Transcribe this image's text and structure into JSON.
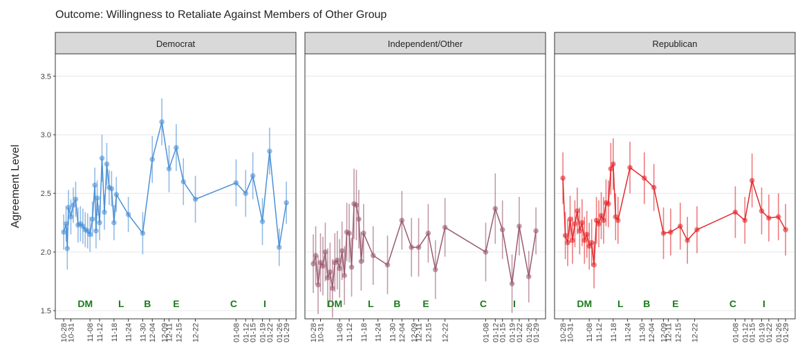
{
  "title": "Outcome: Willingness to Retaliate Against Members of Other Group",
  "y_label": "Agreement Level",
  "chart_data": [
    {
      "type": "line",
      "title": "Democrat",
      "x": [
        0,
        1,
        1.5,
        2,
        3,
        4,
        5,
        6,
        7,
        8,
        9,
        10,
        11,
        12,
        13,
        13.5,
        14,
        15,
        16,
        17,
        18,
        19,
        20,
        21,
        22,
        27,
        33,
        37,
        41,
        44,
        47,
        50,
        55,
        72,
        76,
        79,
        83,
        86,
        90,
        93
      ],
      "series": [
        {
          "color": "#4a8fd6",
          "values": [
            2.17,
            2.24,
            2.03,
            2.38,
            2.3,
            2.4,
            2.45,
            2.23,
            2.24,
            2.22,
            2.19,
            2.18,
            2.15,
            2.28,
            2.57,
            2.18,
            2.46,
            2.25,
            2.8,
            2.34,
            2.75,
            2.55,
            2.54,
            2.25,
            2.49,
            2.32,
            2.16,
            2.79,
            3.11,
            2.71,
            2.89,
            2.6,
            2.45,
            2.59,
            2.5,
            2.65,
            2.26,
            2.86,
            2.04,
            2.42
          ],
          "errors": [
            0.15,
            0.15,
            0.18,
            0.15,
            0.15,
            0.15,
            0.15,
            0.15,
            0.15,
            0.15,
            0.15,
            0.15,
            0.15,
            0.15,
            0.15,
            0.15,
            0.15,
            0.15,
            0.2,
            0.15,
            0.18,
            0.15,
            0.15,
            0.15,
            0.15,
            0.15,
            0.18,
            0.2,
            0.2,
            0.2,
            0.2,
            0.2,
            0.2,
            0.2,
            0.2,
            0.2,
            0.2,
            0.2,
            0.16,
            0.18
          ]
        }
      ],
      "annotations": [
        {
          "label": "DM",
          "x": 9,
          "y": 1.56
        },
        {
          "label": "L",
          "x": 24,
          "y": 1.56
        },
        {
          "label": "B",
          "x": 35,
          "y": 1.56
        },
        {
          "label": "E",
          "x": 47,
          "y": 1.56
        },
        {
          "label": "C",
          "x": 71,
          "y": 1.56
        },
        {
          "label": "I",
          "x": 84,
          "y": 1.56
        }
      ],
      "annotation_color": "#1a7a1a",
      "xlim": [
        -3.5,
        97
      ],
      "ylim": [
        1.43,
        3.69
      ],
      "xticks": [
        {
          "value": 0,
          "label": "10-28"
        },
        {
          "value": 3,
          "label": "10-31"
        },
        {
          "value": 11,
          "label": "11-08"
        },
        {
          "value": 15,
          "label": "11-12"
        },
        {
          "value": 21,
          "label": "11-18"
        },
        {
          "value": 27,
          "label": "11-24"
        },
        {
          "value": 33,
          "label": "11-30"
        },
        {
          "value": 37,
          "label": "12-04"
        },
        {
          "value": 42,
          "label": "12-09"
        },
        {
          "value": 44,
          "label": "12-11"
        },
        {
          "value": 48,
          "label": "12-15"
        },
        {
          "value": 55,
          "label": "12-22"
        },
        {
          "value": 72,
          "label": "01-08"
        },
        {
          "value": 76,
          "label": "01-12"
        },
        {
          "value": 79,
          "label": "01-15"
        },
        {
          "value": 83,
          "label": "01-19"
        },
        {
          "value": 86,
          "label": "01-22"
        },
        {
          "value": 90,
          "label": "01-26"
        },
        {
          "value": 93,
          "label": "01-29"
        }
      ],
      "yticks": [
        {
          "value": 1.5,
          "label": "1.5"
        },
        {
          "value": 2,
          "label": "2.0"
        },
        {
          "value": 2.5,
          "label": "2.5"
        },
        {
          "value": 3,
          "label": "3.0"
        },
        {
          "value": 3.5,
          "label": "3.5"
        }
      ],
      "grid": true
    },
    {
      "type": "line",
      "title": "Independent/Other",
      "x": [
        0,
        1,
        2,
        3,
        4,
        5,
        6,
        7,
        8,
        9,
        10,
        11,
        12,
        13,
        14,
        15,
        16,
        17,
        18,
        19,
        20,
        21,
        25,
        31,
        37,
        41,
        44,
        48,
        51,
        55,
        72,
        76,
        79,
        83,
        86,
        90,
        93
      ],
      "series": [
        {
          "color": "#99596f",
          "values": [
            1.9,
            1.97,
            1.72,
            1.91,
            1.88,
            2.0,
            1.78,
            1.83,
            1.69,
            1.91,
            1.93,
            1.86,
            2.01,
            1.8,
            2.17,
            2.16,
            1.87,
            2.41,
            2.4,
            2.28,
            1.92,
            2.16,
            1.97,
            1.89,
            2.27,
            2.04,
            2.04,
            2.16,
            1.85,
            2.21,
            2.0,
            2.37,
            2.19,
            1.73,
            2.22,
            1.79,
            2.18
          ],
          "errors": [
            0.25,
            0.25,
            0.25,
            0.25,
            0.25,
            0.25,
            0.25,
            0.25,
            0.25,
            0.25,
            0.25,
            0.25,
            0.25,
            0.25,
            0.25,
            0.25,
            0.25,
            0.3,
            0.3,
            0.25,
            0.25,
            0.25,
            0.25,
            0.25,
            0.25,
            0.25,
            0.25,
            0.25,
            0.25,
            0.25,
            0.25,
            0.3,
            0.25,
            0.25,
            0.25,
            0.22,
            0.2
          ]
        }
      ],
      "annotations": [
        {
          "label": "DM",
          "x": 9,
          "y": 1.56
        },
        {
          "label": "L",
          "x": 24,
          "y": 1.56
        },
        {
          "label": "B",
          "x": 35,
          "y": 1.56
        },
        {
          "label": "E",
          "x": 47,
          "y": 1.56
        },
        {
          "label": "C",
          "x": 71,
          "y": 1.56
        },
        {
          "label": "I",
          "x": 84,
          "y": 1.56
        }
      ],
      "annotation_color": "#1a7a1a",
      "xlim": [
        -3.5,
        97
      ],
      "ylim": [
        1.43,
        3.69
      ],
      "xticks": [
        {
          "value": 0,
          "label": "10-28"
        },
        {
          "value": 3,
          "label": "10-31"
        },
        {
          "value": 11,
          "label": "11-08"
        },
        {
          "value": 15,
          "label": "11-12"
        },
        {
          "value": 21,
          "label": "11-18"
        },
        {
          "value": 27,
          "label": "11-24"
        },
        {
          "value": 33,
          "label": "11-30"
        },
        {
          "value": 37,
          "label": "12-04"
        },
        {
          "value": 42,
          "label": "12-09"
        },
        {
          "value": 44,
          "label": "12-11"
        },
        {
          "value": 48,
          "label": "12-15"
        },
        {
          "value": 55,
          "label": "12-22"
        },
        {
          "value": 72,
          "label": "01-08"
        },
        {
          "value": 76,
          "label": "01-12"
        },
        {
          "value": 79,
          "label": "01-15"
        },
        {
          "value": 83,
          "label": "01-19"
        },
        {
          "value": 86,
          "label": "01-22"
        },
        {
          "value": 90,
          "label": "01-26"
        },
        {
          "value": 93,
          "label": "01-29"
        }
      ],
      "yticks": [
        {
          "value": 1.5,
          "label": "1.5"
        },
        {
          "value": 2,
          "label": "2.0"
        },
        {
          "value": 2.5,
          "label": "2.5"
        },
        {
          "value": 3,
          "label": "3.0"
        },
        {
          "value": 3.5,
          "label": "3.5"
        }
      ],
      "grid": true
    },
    {
      "type": "line",
      "title": "Republican",
      "x": [
        0,
        1,
        2,
        3,
        4,
        5,
        6,
        7,
        8,
        9,
        10,
        11,
        12,
        13,
        14,
        15,
        16,
        17,
        18,
        19,
        20,
        21,
        22,
        23,
        28,
        34,
        38,
        42,
        45,
        49,
        52,
        56,
        72,
        76,
        79,
        83,
        86,
        90,
        93
      ],
      "series": [
        {
          "color": "#e3262b",
          "values": [
            2.63,
            2.14,
            2.08,
            2.28,
            2.1,
            2.24,
            2.35,
            2.18,
            2.25,
            2.1,
            2.15,
            2.05,
            2.08,
            1.89,
            2.27,
            2.24,
            2.31,
            2.27,
            2.42,
            2.41,
            2.71,
            2.75,
            2.3,
            2.27,
            2.72,
            2.63,
            2.55,
            2.16,
            2.17,
            2.22,
            2.1,
            2.19,
            2.34,
            2.27,
            2.61,
            2.35,
            2.29,
            2.3,
            2.19
          ],
          "errors": [
            0.22,
            0.2,
            0.2,
            0.2,
            0.2,
            0.2,
            0.2,
            0.2,
            0.2,
            0.2,
            0.2,
            0.2,
            0.2,
            0.2,
            0.2,
            0.2,
            0.2,
            0.2,
            0.2,
            0.2,
            0.22,
            0.22,
            0.2,
            0.2,
            0.22,
            0.22,
            0.2,
            0.22,
            0.2,
            0.2,
            0.2,
            0.2,
            0.22,
            0.2,
            0.23,
            0.2,
            0.2,
            0.2,
            0.22
          ]
        }
      ],
      "annotations": [
        {
          "label": "DM",
          "x": 9,
          "y": 1.56
        },
        {
          "label": "L",
          "x": 24,
          "y": 1.56
        },
        {
          "label": "B",
          "x": 35,
          "y": 1.56
        },
        {
          "label": "E",
          "x": 47,
          "y": 1.56
        },
        {
          "label": "C",
          "x": 71,
          "y": 1.56
        },
        {
          "label": "I",
          "x": 84,
          "y": 1.56
        }
      ],
      "annotation_color": "#1a7a1a",
      "xlim": [
        -3.5,
        97
      ],
      "ylim": [
        1.43,
        3.69
      ],
      "xticks": [
        {
          "value": 0,
          "label": "10-28"
        },
        {
          "value": 3,
          "label": "10-31"
        },
        {
          "value": 11,
          "label": "11-08"
        },
        {
          "value": 15,
          "label": "11-12"
        },
        {
          "value": 21,
          "label": "11-18"
        },
        {
          "value": 27,
          "label": "11-24"
        },
        {
          "value": 33,
          "label": "11-30"
        },
        {
          "value": 37,
          "label": "12-04"
        },
        {
          "value": 42,
          "label": "12-09"
        },
        {
          "value": 44,
          "label": "12-11"
        },
        {
          "value": 48,
          "label": "12-15"
        },
        {
          "value": 55,
          "label": "12-22"
        },
        {
          "value": 72,
          "label": "01-08"
        },
        {
          "value": 76,
          "label": "01-12"
        },
        {
          "value": 79,
          "label": "01-15"
        },
        {
          "value": 83,
          "label": "01-19"
        },
        {
          "value": 86,
          "label": "01-22"
        },
        {
          "value": 90,
          "label": "01-26"
        },
        {
          "value": 93,
          "label": "01-29"
        }
      ],
      "yticks": [
        {
          "value": 1.5,
          "label": "1.5"
        },
        {
          "value": 2,
          "label": "2.0"
        },
        {
          "value": 2.5,
          "label": "2.5"
        },
        {
          "value": 3,
          "label": "3.0"
        },
        {
          "value": 3.5,
          "label": "3.5"
        }
      ],
      "grid": true
    }
  ]
}
